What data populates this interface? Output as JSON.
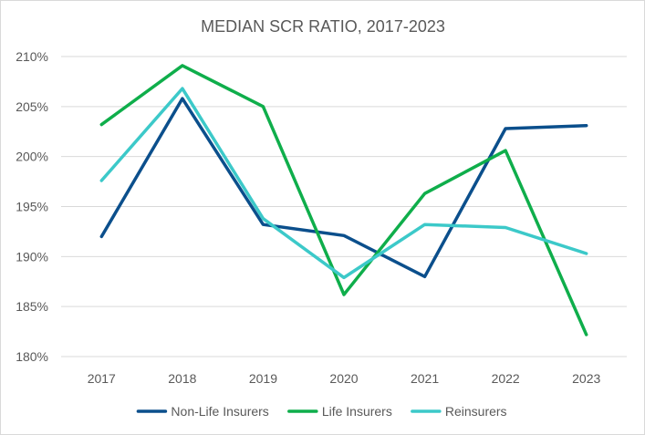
{
  "chart_data": {
    "type": "line",
    "title": "MEDIAN SCR RATIO, 2017-2023",
    "xlabel": "",
    "ylabel": "",
    "categories": [
      "2017",
      "2018",
      "2019",
      "2020",
      "2021",
      "2022",
      "2023"
    ],
    "ylim": [
      180,
      210
    ],
    "yticks": [
      180,
      185,
      190,
      195,
      200,
      205,
      210
    ],
    "ytick_labels": [
      "180%",
      "185%",
      "190%",
      "195%",
      "200%",
      "205%",
      "210%"
    ],
    "grid": true,
    "legend": "bottom",
    "series": [
      {
        "name": "Non-Life Insurers",
        "color": "#0b4f8c",
        "values": [
          192.0,
          205.8,
          193.2,
          192.1,
          188.0,
          202.8,
          203.1
        ]
      },
      {
        "name": "Life Insurers",
        "color": "#0fae4b",
        "values": [
          203.2,
          209.1,
          205.0,
          186.2,
          196.3,
          200.6,
          182.2
        ]
      },
      {
        "name": "Reinsurers",
        "color": "#3cc9c9",
        "values": [
          197.6,
          206.8,
          193.8,
          187.9,
          193.2,
          192.9,
          190.3
        ]
      }
    ]
  }
}
